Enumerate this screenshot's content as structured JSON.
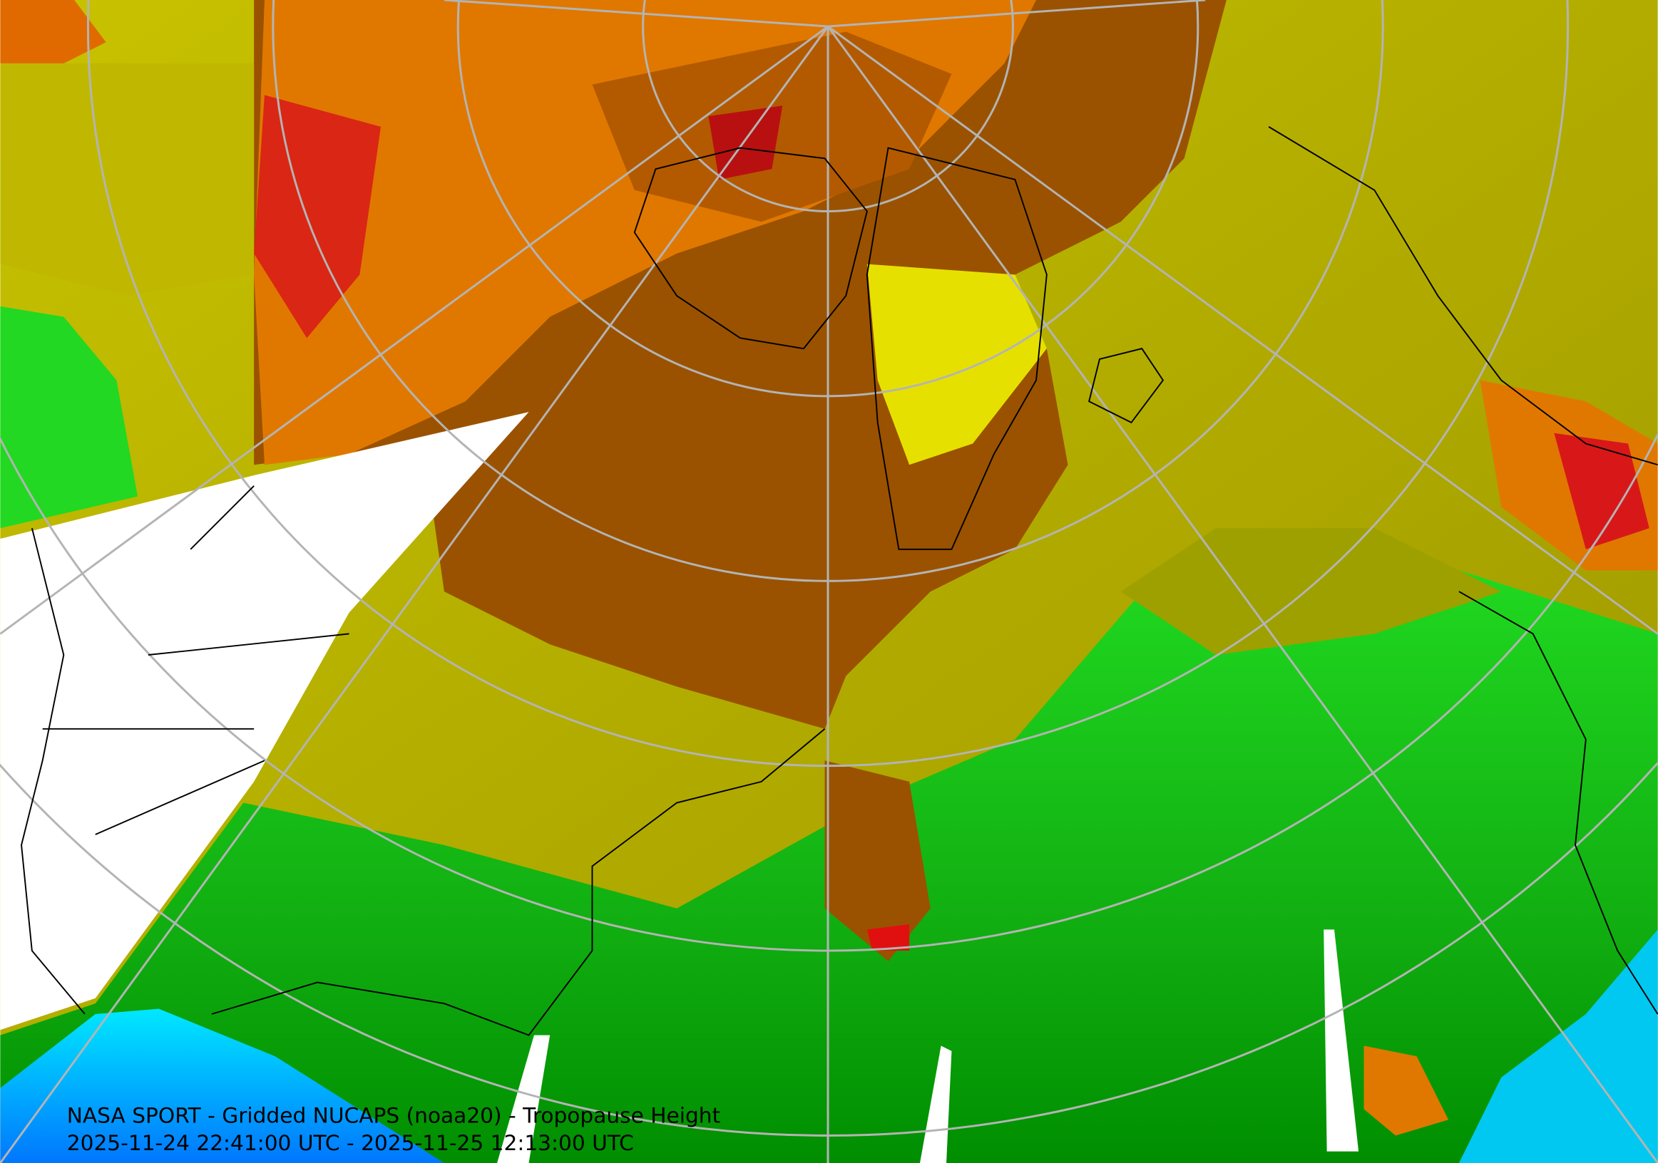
{
  "caption": {
    "title": "NASA SPORT - Gridded NUCAPS (noaa20) - Tropopause Height",
    "time_range": "2025-11-24 22:41:00 UTC - 2025-11-25 12:13:00 UTC"
  }
}
